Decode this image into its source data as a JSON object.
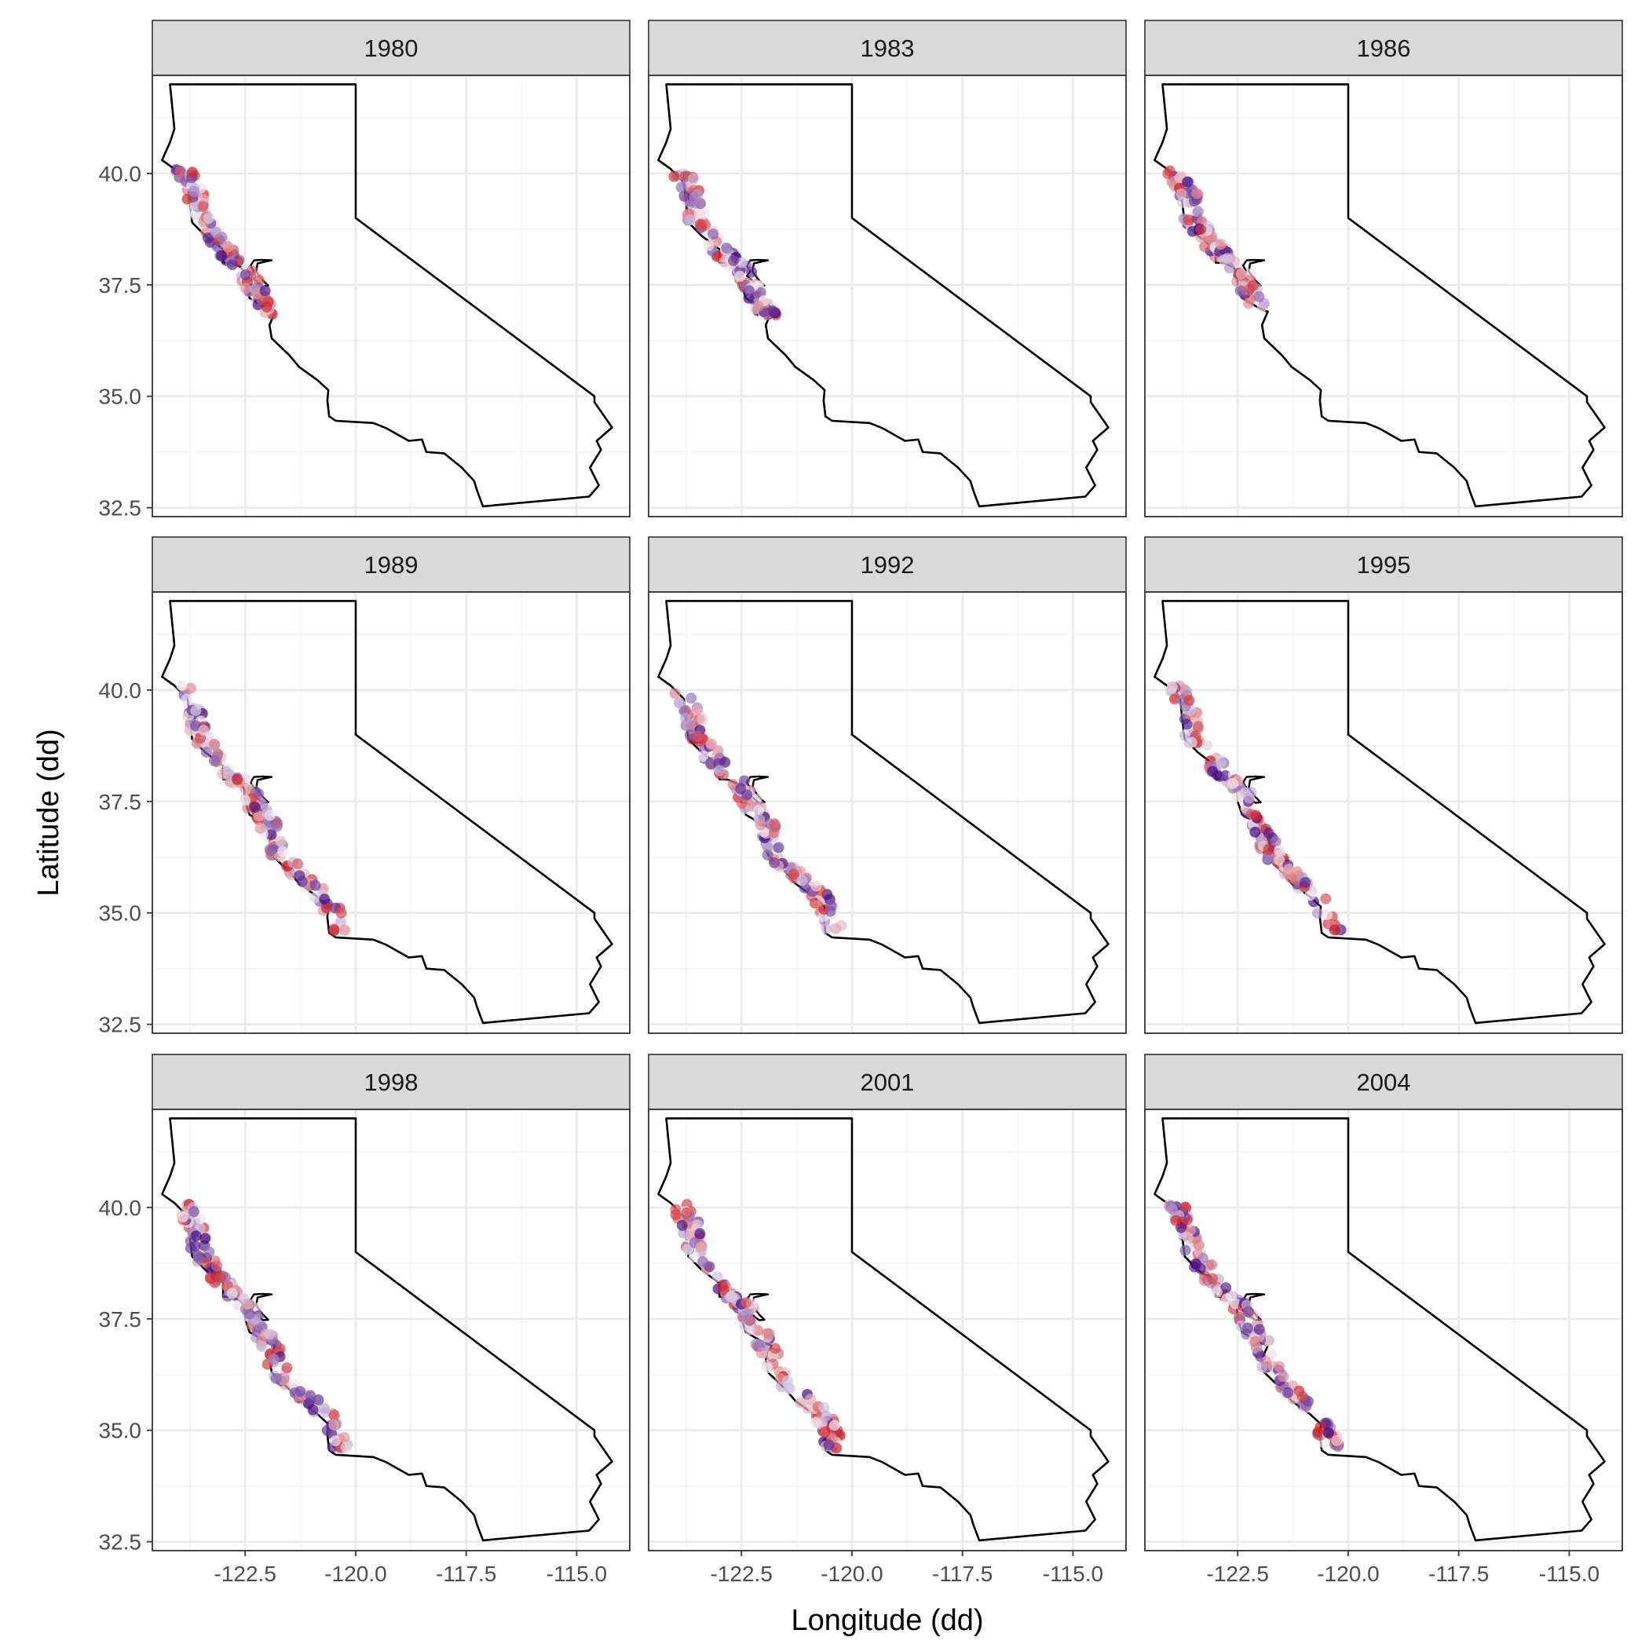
{
  "chart_data": {
    "type": "scatter",
    "xlabel": "Longitude (dd)",
    "ylabel": "Latitude (dd)",
    "xlim": [
      -124.6,
      -113.8
    ],
    "ylim": [
      32.3,
      42.2
    ],
    "x_ticks": [
      -122.5,
      -120.0,
      -117.5,
      -115.0
    ],
    "x_tick_labels": [
      "-122.5",
      "-120.0",
      "-117.5",
      "-115.0"
    ],
    "y_ticks": [
      32.5,
      35.0,
      37.5,
      40.0
    ],
    "y_tick_labels": [
      "32.5",
      "35.0",
      "37.5",
      "40.0"
    ],
    "grid": true,
    "colors": {
      "low": "#3f007d",
      "mid": "#f2eef7",
      "high": "#cb181d",
      "outline": "#000000",
      "strip": "#d9d9d9",
      "grid_major": "#ebebeb",
      "grid_minor": "#f5f5f5"
    },
    "outline_name": "California state boundary",
    "facets": [
      {
        "label": "1980",
        "lat_max": 40.1,
        "lat_min": 36.8
      },
      {
        "label": "1983",
        "lat_max": 40.1,
        "lat_min": 36.8
      },
      {
        "label": "1986",
        "lat_max": 40.1,
        "lat_min": 37.0
      },
      {
        "label": "1989",
        "lat_max": 40.1,
        "lat_min": 34.6
      },
      {
        "label": "1992",
        "lat_max": 40.1,
        "lat_min": 34.6
      },
      {
        "label": "1995",
        "lat_max": 40.1,
        "lat_min": 34.6
      },
      {
        "label": "1998",
        "lat_max": 40.1,
        "lat_min": 34.6
      },
      {
        "label": "2001",
        "lat_max": 40.1,
        "lat_min": 34.6
      },
      {
        "label": "2004",
        "lat_max": 40.1,
        "lat_min": 34.6
      }
    ]
  }
}
